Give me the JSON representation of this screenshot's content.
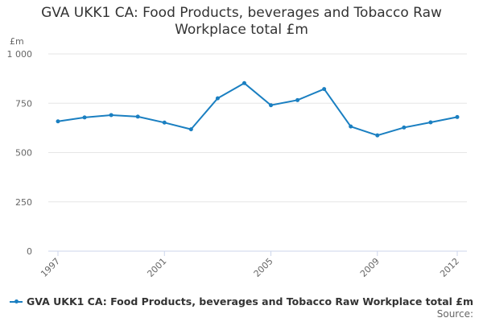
{
  "colors": {
    "series": "#1a7fc1",
    "grid": "#e6e6e6",
    "axis": "#ccd6eb",
    "text": "#666666"
  },
  "source_label": "Source:",
  "chart_data": {
    "type": "line",
    "title": "GVA UKK1 CA: Food Products, beverages and Tobacco Raw Workplace total £m",
    "title_lines": [
      "GVA UKK1 CA: Food Products, beverages and Tobacco Raw",
      "Workplace total £m"
    ],
    "ylabel": "£m",
    "xlabel": "",
    "ylim": [
      0,
      1000
    ],
    "y_ticks": [
      0,
      250,
      500,
      750,
      1000
    ],
    "y_tick_labels": [
      "0",
      "250",
      "500",
      "750",
      "1 000"
    ],
    "x_tick_labels": [
      "1997",
      "2001",
      "2005",
      "2009",
      "2012"
    ],
    "x": [
      1997,
      1998,
      1999,
      2000,
      2001,
      2002,
      2003,
      2004,
      2005,
      2006,
      2007,
      2008,
      2009,
      2010,
      2011,
      2012
    ],
    "series": [
      {
        "name": "GVA UKK1 CA: Food Products, beverages and Tobacco Raw Workplace total £m",
        "values": [
          658,
          678,
          690,
          682,
          652,
          618,
          775,
          852,
          740,
          766,
          822,
          632,
          587,
          627,
          653,
          680
        ]
      }
    ],
    "legend": "bottom-left"
  }
}
